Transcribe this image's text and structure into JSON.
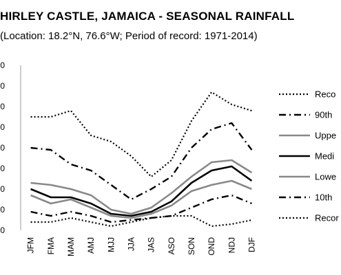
{
  "chart_data": {
    "type": "line",
    "title": "HIRLEY CASTLE, JAMAICA - SEASONAL RAINFALL",
    "subtitle": "Location: 18.2°N, 76.6°W; Period of record: 1971-2014)",
    "categories": [
      "JFM",
      "FMA",
      "MAM",
      "AMJ",
      "MJJ",
      "JJA",
      "JAS",
      "ASO",
      "SON",
      "OND",
      "NDJ",
      "DJF"
    ],
    "xlabel": "",
    "ylabel": "",
    "y_tick_labels": [
      "0",
      "0",
      "0",
      "0",
      "0",
      "0",
      "0",
      "0",
      "0"
    ],
    "grid": false,
    "legend_position": "right",
    "series": [
      {
        "name": "Reco",
        "style": "dotted",
        "color": "#000000",
        "values": [
          5.5,
          5.5,
          5.8,
          4.6,
          4.3,
          3.6,
          2.6,
          3.4,
          5.3,
          6.7,
          6.1,
          5.8
        ]
      },
      {
        "name": "90th",
        "style": "dashdot",
        "color": "#000000",
        "values": [
          4.0,
          3.9,
          3.2,
          2.9,
          2.2,
          1.5,
          2.0,
          2.6,
          4.0,
          4.9,
          5.2,
          3.9
        ]
      },
      {
        "name": "Uppe",
        "style": "solid",
        "color": "#888888",
        "values": [
          2.3,
          2.2,
          2.0,
          1.7,
          1.0,
          0.8,
          1.1,
          1.8,
          2.6,
          3.3,
          3.4,
          2.8
        ]
      },
      {
        "name": "Medi",
        "style": "solid",
        "color": "#000000",
        "values": [
          2.0,
          1.6,
          1.6,
          1.3,
          0.8,
          0.7,
          0.9,
          1.4,
          2.3,
          2.9,
          3.1,
          2.4
        ]
      },
      {
        "name": "Lowe",
        "style": "solid",
        "color": "#888888",
        "values": [
          1.7,
          1.3,
          1.5,
          1.1,
          0.7,
          0.6,
          0.8,
          1.2,
          1.9,
          2.2,
          2.4,
          2.0
        ]
      },
      {
        "name": "10th",
        "style": "dashdot",
        "color": "#000000",
        "values": [
          0.9,
          0.7,
          0.9,
          0.7,
          0.4,
          0.5,
          0.6,
          0.7,
          1.1,
          1.5,
          1.7,
          1.3
        ]
      },
      {
        "name": "Recor",
        "style": "dotted",
        "color": "#000000",
        "values": [
          0.4,
          0.4,
          0.6,
          0.4,
          0.2,
          0.4,
          0.6,
          0.7,
          0.7,
          0.2,
          0.3,
          0.5
        ]
      }
    ],
    "ylim": [
      0,
      8
    ]
  }
}
